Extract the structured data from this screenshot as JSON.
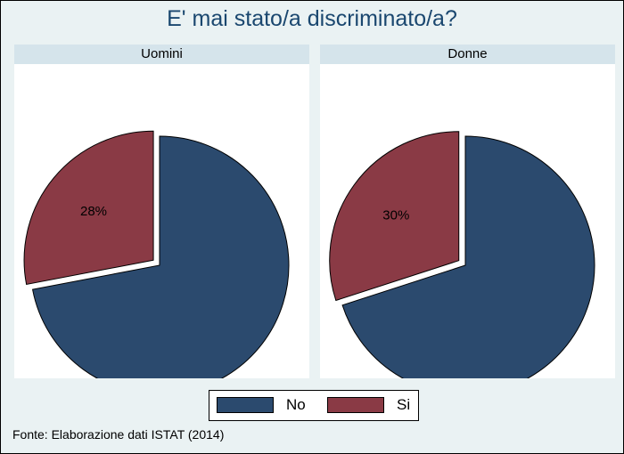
{
  "chart_data": {
    "type": "pie",
    "title": "E' mai stato/a discriminato/a?",
    "categories": [
      "No",
      "Si"
    ],
    "colors": {
      "No": "#2b4a6e",
      "Si": "#8a3a45"
    },
    "panels": [
      {
        "name": "Uomini",
        "values": [
          72,
          28
        ],
        "labels": [
          "",
          "28%"
        ]
      },
      {
        "name": "Donne",
        "values": [
          70,
          30
        ],
        "labels": [
          "",
          "30%"
        ]
      }
    ],
    "legend": {
      "position": "bottom",
      "items": [
        "No",
        "Si"
      ]
    },
    "note": "Fonte: Elaborazione dati ISTAT (2014)"
  }
}
